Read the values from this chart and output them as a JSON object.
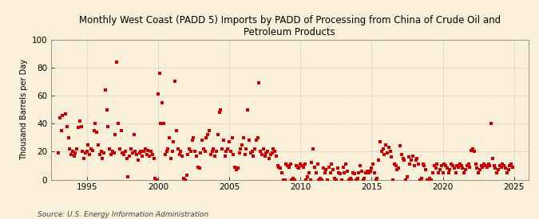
{
  "title": "Monthly West Coast (PADD 5) Imports by PADD of Processing from China of Crude Oil and\nPetroleum Products",
  "ylabel": "Thousand Barrels per Day",
  "source": "Source: U.S. Energy Information Administration",
  "background_color": "#faefd8",
  "dot_color": "#cc0000",
  "grid_color": "#bbbbbb",
  "ylim": [
    0,
    100
  ],
  "yticks": [
    0,
    20,
    40,
    60,
    80,
    100
  ],
  "xlim_start": 1992.5,
  "xlim_end": 2026.0,
  "xticks": [
    1995,
    2000,
    2005,
    2010,
    2015,
    2020,
    2025
  ],
  "dot_size": 5,
  "title_fontsize": 8.5,
  "ylabel_fontsize": 7,
  "tick_fontsize": 7.5,
  "source_fontsize": 6.5,
  "data_points": [
    [
      1993.0,
      19
    ],
    [
      1993.1,
      44
    ],
    [
      1993.2,
      35
    ],
    [
      1993.3,
      46
    ],
    [
      1993.5,
      47
    ],
    [
      1993.6,
      38
    ],
    [
      1993.7,
      30
    ],
    [
      1993.8,
      22
    ],
    [
      1993.9,
      18
    ],
    [
      1994.0,
      20
    ],
    [
      1994.1,
      17
    ],
    [
      1994.2,
      19
    ],
    [
      1994.3,
      22
    ],
    [
      1994.4,
      37
    ],
    [
      1994.5,
      42
    ],
    [
      1994.6,
      38
    ],
    [
      1994.7,
      20
    ],
    [
      1994.8,
      15
    ],
    [
      1994.9,
      19
    ],
    [
      1995.0,
      20
    ],
    [
      1995.1,
      25
    ],
    [
      1995.2,
      18
    ],
    [
      1995.3,
      22
    ],
    [
      1995.4,
      21
    ],
    [
      1995.5,
      35
    ],
    [
      1995.6,
      40
    ],
    [
      1995.7,
      34
    ],
    [
      1995.8,
      25
    ],
    [
      1995.9,
      18
    ],
    [
      1996.0,
      20
    ],
    [
      1996.1,
      15
    ],
    [
      1996.2,
      19
    ],
    [
      1996.3,
      64
    ],
    [
      1996.4,
      50
    ],
    [
      1996.5,
      38
    ],
    [
      1996.6,
      22
    ],
    [
      1996.7,
      18
    ],
    [
      1996.8,
      20
    ],
    [
      1996.9,
      19
    ],
    [
      1997.0,
      32
    ],
    [
      1997.1,
      84
    ],
    [
      1997.2,
      40
    ],
    [
      1997.3,
      22
    ],
    [
      1997.4,
      35
    ],
    [
      1997.5,
      19
    ],
    [
      1997.6,
      18
    ],
    [
      1997.7,
      20
    ],
    [
      1997.8,
      15
    ],
    [
      1997.9,
      2
    ],
    [
      1998.0,
      17
    ],
    [
      1998.1,
      22
    ],
    [
      1998.2,
      19
    ],
    [
      1998.3,
      32
    ],
    [
      1998.4,
      20
    ],
    [
      1998.5,
      18
    ],
    [
      1998.6,
      14
    ],
    [
      1998.7,
      19
    ],
    [
      1998.8,
      20
    ],
    [
      1998.9,
      17
    ],
    [
      1999.0,
      20
    ],
    [
      1999.1,
      22
    ],
    [
      1999.2,
      18
    ],
    [
      1999.3,
      21
    ],
    [
      1999.4,
      17
    ],
    [
      1999.5,
      20
    ],
    [
      1999.6,
      18
    ],
    [
      1999.7,
      15
    ],
    [
      1999.8,
      1
    ],
    [
      1999.9,
      0
    ],
    [
      2000.0,
      61
    ],
    [
      2000.1,
      76
    ],
    [
      2000.2,
      40
    ],
    [
      2000.3,
      55
    ],
    [
      2000.4,
      40
    ],
    [
      2000.5,
      18
    ],
    [
      2000.6,
      20
    ],
    [
      2000.7,
      22
    ],
    [
      2000.8,
      30
    ],
    [
      2000.9,
      15
    ],
    [
      2001.0,
      20
    ],
    [
      2001.1,
      27
    ],
    [
      2001.2,
      70
    ],
    [
      2001.3,
      35
    ],
    [
      2001.4,
      22
    ],
    [
      2001.5,
      18
    ],
    [
      2001.6,
      20
    ],
    [
      2001.7,
      17
    ],
    [
      2001.8,
      1
    ],
    [
      2001.9,
      0
    ],
    [
      2002.0,
      3
    ],
    [
      2002.1,
      18
    ],
    [
      2002.2,
      22
    ],
    [
      2002.3,
      20
    ],
    [
      2002.4,
      28
    ],
    [
      2002.5,
      30
    ],
    [
      2002.6,
      20
    ],
    [
      2002.7,
      17
    ],
    [
      2002.8,
      9
    ],
    [
      2002.9,
      8
    ],
    [
      2003.0,
      19
    ],
    [
      2003.1,
      28
    ],
    [
      2003.2,
      22
    ],
    [
      2003.3,
      20
    ],
    [
      2003.4,
      30
    ],
    [
      2003.5,
      32
    ],
    [
      2003.6,
      35
    ],
    [
      2003.7,
      18
    ],
    [
      2003.8,
      20
    ],
    [
      2003.9,
      22
    ],
    [
      2004.0,
      17
    ],
    [
      2004.1,
      20
    ],
    [
      2004.2,
      32
    ],
    [
      2004.3,
      48
    ],
    [
      2004.4,
      50
    ],
    [
      2004.5,
      22
    ],
    [
      2004.6,
      28
    ],
    [
      2004.7,
      17
    ],
    [
      2004.8,
      20
    ],
    [
      2004.9,
      22
    ],
    [
      2005.0,
      27
    ],
    [
      2005.1,
      20
    ],
    [
      2005.2,
      30
    ],
    [
      2005.3,
      18
    ],
    [
      2005.4,
      9
    ],
    [
      2005.5,
      7
    ],
    [
      2005.6,
      8
    ],
    [
      2005.7,
      19
    ],
    [
      2005.8,
      22
    ],
    [
      2005.9,
      25
    ],
    [
      2006.0,
      30
    ],
    [
      2006.1,
      18
    ],
    [
      2006.2,
      22
    ],
    [
      2006.3,
      50
    ],
    [
      2006.4,
      28
    ],
    [
      2006.5,
      19
    ],
    [
      2006.6,
      20
    ],
    [
      2006.7,
      17
    ],
    [
      2006.8,
      22
    ],
    [
      2006.9,
      28
    ],
    [
      2007.0,
      30
    ],
    [
      2007.1,
      69
    ],
    [
      2007.2,
      20
    ],
    [
      2007.3,
      18
    ],
    [
      2007.4,
      22
    ],
    [
      2007.5,
      17
    ],
    [
      2007.6,
      19
    ],
    [
      2007.7,
      20
    ],
    [
      2007.8,
      15
    ],
    [
      2007.9,
      18
    ],
    [
      2008.0,
      19
    ],
    [
      2008.1,
      22
    ],
    [
      2008.2,
      20
    ],
    [
      2008.3,
      17
    ],
    [
      2008.4,
      10
    ],
    [
      2008.5,
      9
    ],
    [
      2008.6,
      8
    ],
    [
      2008.7,
      5
    ],
    [
      2008.8,
      0
    ],
    [
      2008.9,
      0
    ],
    [
      2009.0,
      11
    ],
    [
      2009.1,
      10
    ],
    [
      2009.2,
      9
    ],
    [
      2009.3,
      11
    ],
    [
      2009.4,
      0
    ],
    [
      2009.5,
      1
    ],
    [
      2009.6,
      0
    ],
    [
      2009.7,
      10
    ],
    [
      2009.8,
      9
    ],
    [
      2009.9,
      8
    ],
    [
      2010.0,
      11
    ],
    [
      2010.1,
      10
    ],
    [
      2010.2,
      9
    ],
    [
      2010.3,
      11
    ],
    [
      2010.4,
      0
    ],
    [
      2010.5,
      2
    ],
    [
      2010.6,
      5
    ],
    [
      2010.7,
      0
    ],
    [
      2010.8,
      12
    ],
    [
      2010.9,
      22
    ],
    [
      2011.0,
      9
    ],
    [
      2011.1,
      5
    ],
    [
      2011.2,
      11
    ],
    [
      2011.3,
      0
    ],
    [
      2011.4,
      1
    ],
    [
      2011.5,
      0
    ],
    [
      2011.6,
      8
    ],
    [
      2011.7,
      5
    ],
    [
      2011.8,
      7
    ],
    [
      2011.9,
      0
    ],
    [
      2012.0,
      9
    ],
    [
      2012.1,
      5
    ],
    [
      2012.2,
      11
    ],
    [
      2012.3,
      7
    ],
    [
      2012.4,
      1
    ],
    [
      2012.5,
      0
    ],
    [
      2012.6,
      8
    ],
    [
      2012.7,
      5
    ],
    [
      2012.8,
      4
    ],
    [
      2012.9,
      0
    ],
    [
      2013.0,
      9
    ],
    [
      2013.1,
      5
    ],
    [
      2013.2,
      11
    ],
    [
      2013.3,
      6
    ],
    [
      2013.4,
      0
    ],
    [
      2013.5,
      1
    ],
    [
      2013.6,
      0
    ],
    [
      2013.7,
      5
    ],
    [
      2013.8,
      4
    ],
    [
      2013.9,
      0
    ],
    [
      2014.0,
      1
    ],
    [
      2014.1,
      5
    ],
    [
      2014.2,
      10
    ],
    [
      2014.3,
      6
    ],
    [
      2014.4,
      0
    ],
    [
      2014.5,
      1
    ],
    [
      2014.6,
      5
    ],
    [
      2014.7,
      6
    ],
    [
      2014.8,
      5
    ],
    [
      2014.9,
      6
    ],
    [
      2015.0,
      8
    ],
    [
      2015.1,
      11
    ],
    [
      2015.2,
      5
    ],
    [
      2015.3,
      0
    ],
    [
      2015.4,
      1
    ],
    [
      2015.5,
      14
    ],
    [
      2015.6,
      27
    ],
    [
      2015.7,
      20
    ],
    [
      2015.8,
      22
    ],
    [
      2015.9,
      18
    ],
    [
      2016.0,
      25
    ],
    [
      2016.1,
      19
    ],
    [
      2016.2,
      23
    ],
    [
      2016.3,
      20
    ],
    [
      2016.4,
      16
    ],
    [
      2016.5,
      0
    ],
    [
      2016.6,
      11
    ],
    [
      2016.7,
      10
    ],
    [
      2016.8,
      7
    ],
    [
      2016.9,
      8
    ],
    [
      2017.0,
      24
    ],
    [
      2017.1,
      18
    ],
    [
      2017.2,
      15
    ],
    [
      2017.3,
      14
    ],
    [
      2017.4,
      0
    ],
    [
      2017.5,
      2
    ],
    [
      2017.6,
      16
    ],
    [
      2017.7,
      11
    ],
    [
      2017.8,
      14
    ],
    [
      2017.9,
      17
    ],
    [
      2018.0,
      10
    ],
    [
      2018.1,
      14
    ],
    [
      2018.2,
      15
    ],
    [
      2018.3,
      11
    ],
    [
      2018.4,
      0
    ],
    [
      2018.5,
      1
    ],
    [
      2018.6,
      11
    ],
    [
      2018.7,
      10
    ],
    [
      2018.8,
      7
    ],
    [
      2018.9,
      0
    ],
    [
      2019.0,
      0
    ],
    [
      2019.1,
      1
    ],
    [
      2019.2,
      0
    ],
    [
      2019.3,
      5
    ],
    [
      2019.4,
      10
    ],
    [
      2019.5,
      8
    ],
    [
      2019.6,
      11
    ],
    [
      2019.7,
      5
    ],
    [
      2019.8,
      7
    ],
    [
      2019.9,
      10
    ],
    [
      2020.0,
      5
    ],
    [
      2020.1,
      11
    ],
    [
      2020.2,
      10
    ],
    [
      2020.3,
      8
    ],
    [
      2020.4,
      5
    ],
    [
      2020.5,
      7
    ],
    [
      2020.6,
      11
    ],
    [
      2020.7,
      10
    ],
    [
      2020.8,
      8
    ],
    [
      2020.9,
      5
    ],
    [
      2021.0,
      10
    ],
    [
      2021.1,
      9
    ],
    [
      2021.2,
      11
    ],
    [
      2021.3,
      10
    ],
    [
      2021.4,
      8
    ],
    [
      2021.5,
      5
    ],
    [
      2021.6,
      7
    ],
    [
      2021.7,
      10
    ],
    [
      2021.8,
      11
    ],
    [
      2021.9,
      9
    ],
    [
      2022.0,
      21
    ],
    [
      2022.1,
      22
    ],
    [
      2022.2,
      20
    ],
    [
      2022.3,
      11
    ],
    [
      2022.4,
      8
    ],
    [
      2022.5,
      5
    ],
    [
      2022.6,
      7
    ],
    [
      2022.7,
      10
    ],
    [
      2022.8,
      9
    ],
    [
      2022.9,
      11
    ],
    [
      2023.0,
      10
    ],
    [
      2023.1,
      9
    ],
    [
      2023.2,
      11
    ],
    [
      2023.3,
      10
    ],
    [
      2023.4,
      40
    ],
    [
      2023.5,
      15
    ],
    [
      2023.6,
      10
    ],
    [
      2023.7,
      8
    ],
    [
      2023.8,
      5
    ],
    [
      2023.9,
      7
    ],
    [
      2024.0,
      10
    ],
    [
      2024.1,
      9
    ],
    [
      2024.2,
      11
    ],
    [
      2024.3,
      10
    ],
    [
      2024.4,
      8
    ],
    [
      2024.5,
      5
    ],
    [
      2024.6,
      7
    ],
    [
      2024.7,
      10
    ],
    [
      2024.8,
      11
    ],
    [
      2024.9,
      9
    ]
  ]
}
